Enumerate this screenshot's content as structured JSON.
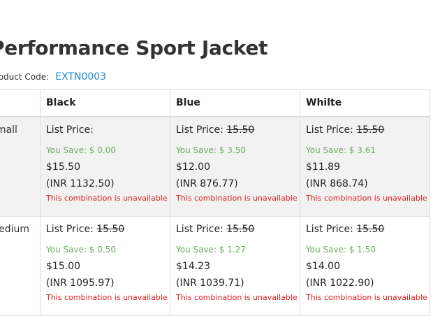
{
  "product": {
    "title": "Performance Sport Jacket",
    "code_label": "Product Code:",
    "code_value": "EXTN0003"
  },
  "colors": {
    "accent_link": "#1a8ad4",
    "save_green": "#6aac5e",
    "unavailable_red": "#e02020",
    "row_shade": "#f2f2f2"
  },
  "grid": {
    "columns": [
      "Black",
      "Blue",
      "Whilte"
    ],
    "rows": [
      {
        "size": "Small",
        "cells": [
          {
            "list_label": "List Price:",
            "list_price": "",
            "save": "You Save: $ 0.00",
            "price": "$15.50",
            "inr": "(INR 1132.50)",
            "status": "This combination is unavailable"
          },
          {
            "list_label": "List Price:",
            "list_price": "15.50",
            "save": "You Save: $ 3.50",
            "price": "$12.00",
            "inr": "(INR 876.77)",
            "status": "This combination is unavailable"
          },
          {
            "list_label": "List Price:",
            "list_price": "15.50",
            "save": "You Save: $ 3.61",
            "price": "$11.89",
            "inr": "(INR 868.74)",
            "status": "This combination is unavailable"
          }
        ]
      },
      {
        "size": "Medium",
        "cells": [
          {
            "list_label": "List Price:",
            "list_price": "15.50",
            "save": "You Save: $ 0.50",
            "price": "$15.00",
            "inr": "(INR 1095.97)",
            "status": "This combination is unavailable"
          },
          {
            "list_label": "List Price:",
            "list_price": "15.50",
            "save": "You Save: $ 1.27",
            "price": "$14.23",
            "inr": "(INR 1039.71)",
            "status": "This combination is unavailable"
          },
          {
            "list_label": "List Price:",
            "list_price": "15.50",
            "save": "You Save: $ 1.50",
            "price": "$14.00",
            "inr": "(INR 1022.90)",
            "status": "This combination is unavailable"
          }
        ]
      }
    ]
  }
}
